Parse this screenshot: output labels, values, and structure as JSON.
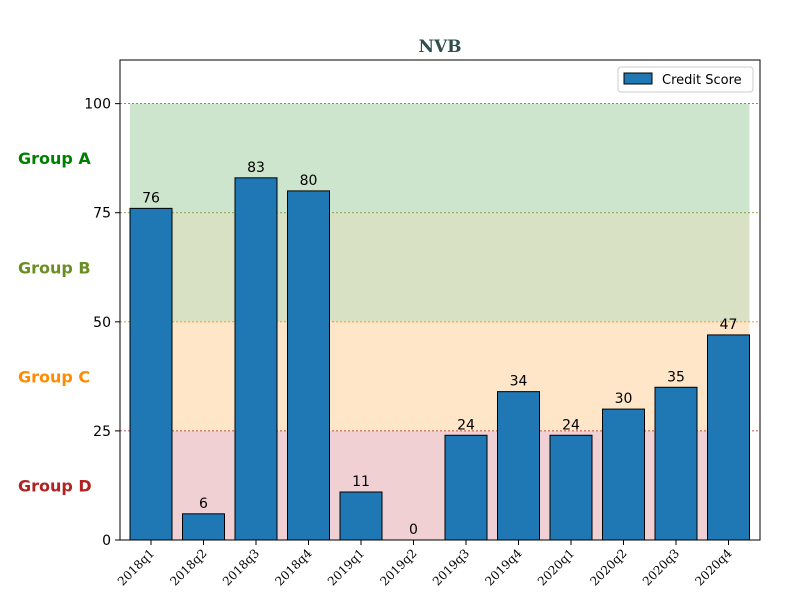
{
  "chart_data": {
    "type": "bar",
    "title": "NVB",
    "title_color": "#2f4f4f",
    "xlabel": "",
    "ylabel": "",
    "categories": [
      "2018q1",
      "2018q2",
      "2018q3",
      "2018q4",
      "2019q1",
      "2019q2",
      "2019q3",
      "2019q4",
      "2020q1",
      "2020q2",
      "2020q3",
      "2020q4"
    ],
    "series": [
      {
        "name": "Credit Score",
        "values": [
          76,
          6,
          83,
          80,
          11,
          0,
          24,
          34,
          24,
          30,
          35,
          47
        ],
        "color": "#1f77b4"
      }
    ],
    "ylim": [
      0,
      110
    ],
    "yticks": [
      0,
      25,
      50,
      75,
      100
    ],
    "legend": {
      "placement": "top-right",
      "entries": [
        "Credit Score"
      ]
    },
    "grid": false,
    "bands": [
      {
        "label": "Group A",
        "from": 75,
        "to": 100,
        "color": "#cde5cd",
        "label_color": "#008000",
        "line_color": "#228b22"
      },
      {
        "label": "Group B",
        "from": 50,
        "to": 75,
        "color": "#d9e1c5",
        "label_color": "#6b8e23",
        "line_color": "#6b8e23"
      },
      {
        "label": "Group C",
        "from": 25,
        "to": 50,
        "color": "#ffe6c8",
        "label_color": "#ff8c00",
        "line_color": "#ff8c00"
      },
      {
        "label": "Group D",
        "from": 0,
        "to": 25,
        "color": "#f0d0d3",
        "label_color": "#b22222",
        "line_color": "#b22222"
      }
    ]
  }
}
